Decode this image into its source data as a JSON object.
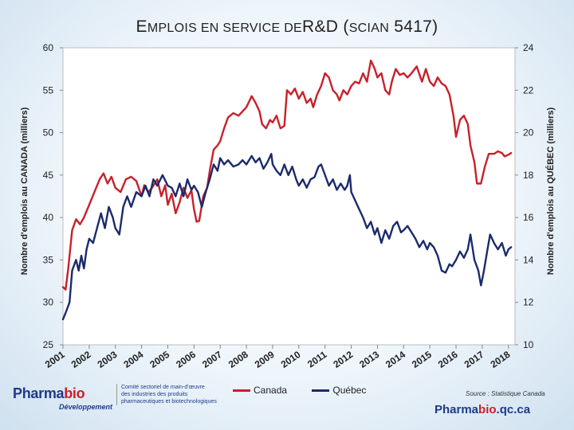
{
  "title": {
    "first": "E",
    "smallcaps1": "MPLOIS EN SERVICE DE",
    "main": "R&D (",
    "smallcaps2": "SCIAN",
    "end": " 5417)"
  },
  "chart_data": {
    "type": "line",
    "title": "EMPLOIS EN SERVICE DE R&D (SCIAN 5417)",
    "x_categories": [
      "2001",
      "2002",
      "2003",
      "2004",
      "2005",
      "2006",
      "2007",
      "2008",
      "2009",
      "2010",
      "2011",
      "2012",
      "2013",
      "2014",
      "2015",
      "2016",
      "2017",
      "2018"
    ],
    "x_range": [
      2001.0,
      2018.25
    ],
    "left_axis": {
      "label": "Nombre d'emplois au CANADA (milliers)",
      "ylim": [
        25,
        60
      ],
      "ticks": [
        25,
        30,
        35,
        40,
        45,
        50,
        55,
        60
      ]
    },
    "right_axis": {
      "label": "Nombre d'emplois au QUÉBEC (milliers)",
      "ylim": [
        10,
        24
      ],
      "ticks": [
        10,
        12,
        14,
        16,
        18,
        20,
        22,
        24
      ]
    },
    "series": [
      {
        "name": "Canada",
        "axis": "left",
        "color": "#c8202a",
        "points": [
          [
            2001.0,
            31.8
          ],
          [
            2001.1,
            31.5
          ],
          [
            2001.2,
            34.0
          ],
          [
            2001.35,
            38.5
          ],
          [
            2001.5,
            39.8
          ],
          [
            2001.65,
            39.2
          ],
          [
            2001.8,
            40.0
          ],
          [
            2002.0,
            41.5
          ],
          [
            2002.2,
            43.0
          ],
          [
            2002.4,
            44.5
          ],
          [
            2002.55,
            45.2
          ],
          [
            2002.7,
            44.0
          ],
          [
            2002.85,
            44.8
          ],
          [
            2003.0,
            43.5
          ],
          [
            2003.2,
            43.0
          ],
          [
            2003.4,
            44.5
          ],
          [
            2003.6,
            44.8
          ],
          [
            2003.8,
            44.3
          ],
          [
            2004.0,
            42.5
          ],
          [
            2004.1,
            43.8
          ],
          [
            2004.25,
            43.0
          ],
          [
            2004.4,
            43.5
          ],
          [
            2004.6,
            44.5
          ],
          [
            2004.75,
            42.5
          ],
          [
            2004.9,
            43.8
          ],
          [
            2005.0,
            41.5
          ],
          [
            2005.15,
            42.8
          ],
          [
            2005.3,
            40.5
          ],
          [
            2005.45,
            41.8
          ],
          [
            2005.6,
            43.5
          ],
          [
            2005.75,
            42.3
          ],
          [
            2005.9,
            43.2
          ],
          [
            2006.0,
            41.0
          ],
          [
            2006.1,
            39.5
          ],
          [
            2006.2,
            39.6
          ],
          [
            2006.35,
            42.5
          ],
          [
            2006.5,
            43.5
          ],
          [
            2006.6,
            45.5
          ],
          [
            2006.75,
            48.0
          ],
          [
            2006.9,
            48.5
          ],
          [
            2007.0,
            49.0
          ],
          [
            2007.15,
            50.5
          ],
          [
            2007.3,
            51.8
          ],
          [
            2007.5,
            52.3
          ],
          [
            2007.7,
            52.0
          ],
          [
            2007.85,
            52.5
          ],
          [
            2008.0,
            53.0
          ],
          [
            2008.2,
            54.3
          ],
          [
            2008.35,
            53.5
          ],
          [
            2008.5,
            52.5
          ],
          [
            2008.6,
            51.0
          ],
          [
            2008.75,
            50.5
          ],
          [
            2008.9,
            51.5
          ],
          [
            2009.0,
            51.2
          ],
          [
            2009.15,
            52.0
          ],
          [
            2009.3,
            50.5
          ],
          [
            2009.45,
            50.8
          ],
          [
            2009.55,
            55.0
          ],
          [
            2009.7,
            54.5
          ],
          [
            2009.85,
            55.2
          ],
          [
            2010.0,
            54.0
          ],
          [
            2010.15,
            54.8
          ],
          [
            2010.3,
            53.5
          ],
          [
            2010.45,
            54.0
          ],
          [
            2010.55,
            53.0
          ],
          [
            2010.7,
            54.5
          ],
          [
            2010.85,
            55.5
          ],
          [
            2011.0,
            57.0
          ],
          [
            2011.15,
            56.5
          ],
          [
            2011.3,
            55.0
          ],
          [
            2011.45,
            54.5
          ],
          [
            2011.55,
            53.8
          ],
          [
            2011.7,
            55.0
          ],
          [
            2011.85,
            54.5
          ],
          [
            2012.0,
            55.5
          ],
          [
            2012.15,
            56.0
          ],
          [
            2012.3,
            55.8
          ],
          [
            2012.45,
            57.0
          ],
          [
            2012.6,
            56.0
          ],
          [
            2012.75,
            58.5
          ],
          [
            2012.9,
            57.5
          ],
          [
            2013.0,
            56.5
          ],
          [
            2013.15,
            57.0
          ],
          [
            2013.3,
            55.0
          ],
          [
            2013.45,
            54.5
          ],
          [
            2013.55,
            56.0
          ],
          [
            2013.7,
            57.5
          ],
          [
            2013.85,
            56.8
          ],
          [
            2014.0,
            57.0
          ],
          [
            2014.15,
            56.5
          ],
          [
            2014.3,
            57.0
          ],
          [
            2014.5,
            57.8
          ],
          [
            2014.7,
            56.0
          ],
          [
            2014.85,
            57.5
          ],
          [
            2015.0,
            56.0
          ],
          [
            2015.15,
            55.5
          ],
          [
            2015.3,
            56.5
          ],
          [
            2015.45,
            55.8
          ],
          [
            2015.6,
            55.5
          ],
          [
            2015.75,
            54.5
          ],
          [
            2015.9,
            52.0
          ],
          [
            2016.0,
            49.5
          ],
          [
            2016.15,
            51.5
          ],
          [
            2016.3,
            52.0
          ],
          [
            2016.45,
            51.0
          ],
          [
            2016.55,
            48.5
          ],
          [
            2016.7,
            46.5
          ],
          [
            2016.8,
            44.0
          ],
          [
            2016.95,
            44.0
          ],
          [
            2017.1,
            46.0
          ],
          [
            2017.25,
            47.5
          ],
          [
            2017.45,
            47.5
          ],
          [
            2017.6,
            47.8
          ],
          [
            2017.75,
            47.6
          ],
          [
            2017.85,
            47.2
          ],
          [
            2018.0,
            47.4
          ],
          [
            2018.1,
            47.6
          ]
        ]
      },
      {
        "name": "Québec",
        "axis": "right",
        "color": "#1b2a6b",
        "points": [
          [
            2001.0,
            11.2
          ],
          [
            2001.1,
            11.5
          ],
          [
            2001.25,
            12.0
          ],
          [
            2001.35,
            13.5
          ],
          [
            2001.5,
            14.0
          ],
          [
            2001.6,
            13.5
          ],
          [
            2001.7,
            14.2
          ],
          [
            2001.8,
            13.6
          ],
          [
            2001.9,
            14.5
          ],
          [
            2002.0,
            15.0
          ],
          [
            2002.15,
            14.8
          ],
          [
            2002.3,
            15.5
          ],
          [
            2002.45,
            16.2
          ],
          [
            2002.6,
            15.5
          ],
          [
            2002.75,
            16.5
          ],
          [
            2002.9,
            16.0
          ],
          [
            2003.0,
            15.5
          ],
          [
            2003.15,
            15.2
          ],
          [
            2003.3,
            16.5
          ],
          [
            2003.45,
            17.0
          ],
          [
            2003.6,
            16.5
          ],
          [
            2003.8,
            17.2
          ],
          [
            2004.0,
            17.0
          ],
          [
            2004.15,
            17.5
          ],
          [
            2004.3,
            17.0
          ],
          [
            2004.45,
            17.8
          ],
          [
            2004.6,
            17.5
          ],
          [
            2004.8,
            18.0
          ],
          [
            2005.0,
            17.5
          ],
          [
            2005.15,
            17.4
          ],
          [
            2005.3,
            17.0
          ],
          [
            2005.45,
            17.6
          ],
          [
            2005.6,
            17.0
          ],
          [
            2005.75,
            17.8
          ],
          [
            2005.9,
            17.3
          ],
          [
            2006.0,
            17.5
          ],
          [
            2006.15,
            17.2
          ],
          [
            2006.3,
            16.5
          ],
          [
            2006.45,
            17.2
          ],
          [
            2006.6,
            17.8
          ],
          [
            2006.75,
            18.5
          ],
          [
            2006.9,
            18.2
          ],
          [
            2007.0,
            18.8
          ],
          [
            2007.15,
            18.5
          ],
          [
            2007.3,
            18.7
          ],
          [
            2007.5,
            18.4
          ],
          [
            2007.7,
            18.5
          ],
          [
            2007.85,
            18.7
          ],
          [
            2008.0,
            18.5
          ],
          [
            2008.2,
            18.9
          ],
          [
            2008.35,
            18.6
          ],
          [
            2008.5,
            18.8
          ],
          [
            2008.65,
            18.3
          ],
          [
            2008.8,
            18.6
          ],
          [
            2008.95,
            19.0
          ],
          [
            2009.0,
            18.5
          ],
          [
            2009.15,
            18.2
          ],
          [
            2009.3,
            18.0
          ],
          [
            2009.45,
            18.5
          ],
          [
            2009.6,
            18.0
          ],
          [
            2009.75,
            18.4
          ],
          [
            2009.9,
            17.8
          ],
          [
            2010.0,
            17.5
          ],
          [
            2010.15,
            17.8
          ],
          [
            2010.3,
            17.4
          ],
          [
            2010.45,
            17.8
          ],
          [
            2010.6,
            17.9
          ],
          [
            2010.75,
            18.4
          ],
          [
            2010.85,
            18.5
          ],
          [
            2011.0,
            18.0
          ],
          [
            2011.15,
            17.5
          ],
          [
            2011.3,
            17.8
          ],
          [
            2011.45,
            17.3
          ],
          [
            2011.6,
            17.6
          ],
          [
            2011.75,
            17.3
          ],
          [
            2011.85,
            17.5
          ],
          [
            2011.95,
            18.0
          ],
          [
            2012.0,
            17.2
          ],
          [
            2012.15,
            16.8
          ],
          [
            2012.3,
            16.4
          ],
          [
            2012.45,
            16.0
          ],
          [
            2012.6,
            15.5
          ],
          [
            2012.75,
            15.8
          ],
          [
            2012.9,
            15.2
          ],
          [
            2013.0,
            15.5
          ],
          [
            2013.15,
            14.8
          ],
          [
            2013.3,
            15.4
          ],
          [
            2013.45,
            15.0
          ],
          [
            2013.6,
            15.6
          ],
          [
            2013.75,
            15.8
          ],
          [
            2013.9,
            15.3
          ],
          [
            2014.0,
            15.4
          ],
          [
            2014.15,
            15.6
          ],
          [
            2014.3,
            15.3
          ],
          [
            2014.45,
            15.0
          ],
          [
            2014.6,
            14.6
          ],
          [
            2014.75,
            14.9
          ],
          [
            2014.9,
            14.5
          ],
          [
            2015.0,
            14.8
          ],
          [
            2015.15,
            14.6
          ],
          [
            2015.3,
            14.2
          ],
          [
            2015.45,
            13.5
          ],
          [
            2015.6,
            13.4
          ],
          [
            2015.75,
            13.8
          ],
          [
            2015.85,
            13.7
          ],
          [
            2016.0,
            14.0
          ],
          [
            2016.15,
            14.4
          ],
          [
            2016.3,
            14.1
          ],
          [
            2016.45,
            14.5
          ],
          [
            2016.55,
            15.2
          ],
          [
            2016.7,
            14.0
          ],
          [
            2016.85,
            13.5
          ],
          [
            2016.95,
            12.8
          ],
          [
            2017.05,
            13.4
          ],
          [
            2017.2,
            14.5
          ],
          [
            2017.3,
            15.2
          ],
          [
            2017.45,
            14.8
          ],
          [
            2017.6,
            14.5
          ],
          [
            2017.75,
            14.8
          ],
          [
            2017.9,
            14.2
          ],
          [
            2018.0,
            14.5
          ],
          [
            2018.1,
            14.6
          ]
        ]
      }
    ]
  },
  "legend": {
    "canada": "Canada",
    "quebec": "Québec"
  },
  "logo": {
    "word1": "Pharma",
    "word2": "bio",
    "sub": "Développement",
    "desc1": "Comité sectoriel de main-d'œuvre",
    "desc2": "des industries des produits",
    "desc3": "pharmaceutiques et biotechnologiques"
  },
  "source": "Source : Statistique Canada",
  "site": {
    "part1": "Pharma",
    "part2": "bio",
    "part3": ".qc.ca"
  }
}
